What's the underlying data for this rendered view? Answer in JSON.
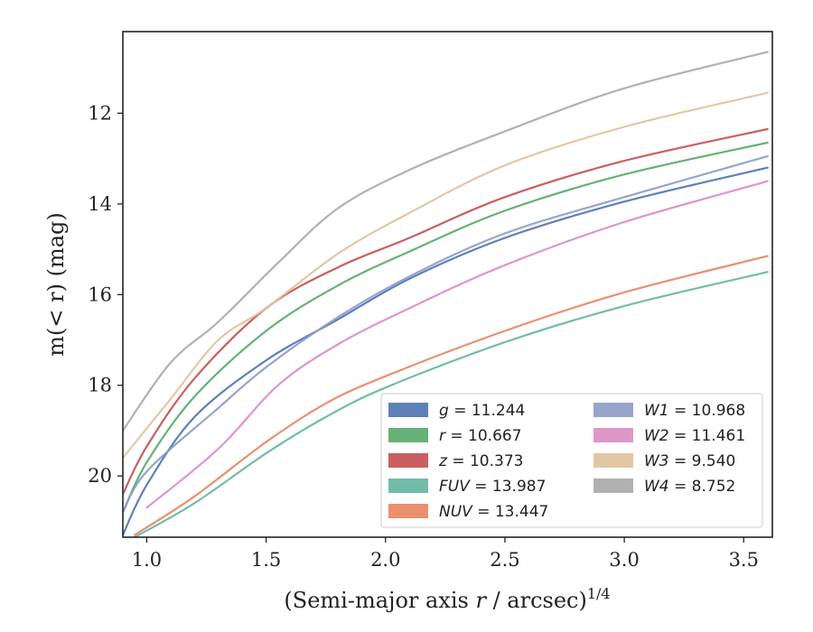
{
  "chart_data": {
    "type": "line",
    "xlabel": "(Semi-major axis r / arcsec)",
    "xlabel_italic": "r",
    "xlabel_sup": "1/4",
    "ylabel": "m(< r) (mag)",
    "xlim": [
      0.9,
      3.62
    ],
    "ylim": [
      21.35,
      10.2
    ],
    "y_inverted": true,
    "xticks": [
      1.0,
      1.5,
      2.0,
      2.5,
      3.0,
      3.5
    ],
    "xtick_labels": [
      "1.0",
      "1.5",
      "2.0",
      "2.5",
      "3.0",
      "3.5"
    ],
    "yticks": [
      12,
      14,
      16,
      18,
      20
    ],
    "ytick_labels": [
      "12",
      "14",
      "16",
      "18",
      "20"
    ],
    "grid": false,
    "legend_placement": "lower-right",
    "series": [
      {
        "name": "g = 11.244",
        "band": "g",
        "mag": "11.244",
        "color": "#4c72b0",
        "x": [
          0.9,
          1.0,
          1.2,
          1.5,
          1.8,
          2.1,
          2.5,
          3.0,
          3.6
        ],
        "y": [
          21.3,
          20.2,
          18.7,
          17.45,
          16.55,
          15.65,
          14.75,
          13.95,
          13.2
        ]
      },
      {
        "name": "r = 10.667",
        "band": "r",
        "mag": "10.667",
        "color": "#55a868",
        "x": [
          0.9,
          1.0,
          1.2,
          1.5,
          1.8,
          2.1,
          2.5,
          3.0,
          3.6
        ],
        "y": [
          20.8,
          19.7,
          18.25,
          16.8,
          15.8,
          15.05,
          14.15,
          13.35,
          12.65
        ]
      },
      {
        "name": "z = 10.373",
        "band": "z",
        "mag": "10.373",
        "color": "#c44e52",
        "x": [
          0.9,
          1.0,
          1.2,
          1.5,
          1.8,
          2.1,
          2.5,
          3.0,
          3.6
        ],
        "y": [
          20.4,
          19.35,
          17.85,
          16.3,
          15.4,
          14.75,
          13.85,
          13.05,
          12.35
        ]
      },
      {
        "name": "FUV = 13.987",
        "band": "FUV",
        "mag": "13.987",
        "color": "#64b5a0",
        "x": [
          0.95,
          1.2,
          1.5,
          1.75,
          2.0,
          2.5,
          3.0,
          3.6
        ],
        "y": [
          21.35,
          20.6,
          19.5,
          18.7,
          18.05,
          17.05,
          16.25,
          15.5
        ]
      },
      {
        "name": "NUV = 13.447",
        "band": "NUV",
        "mag": "13.447",
        "color": "#e8845f",
        "x": [
          0.95,
          1.2,
          1.5,
          1.75,
          2.0,
          2.5,
          3.0,
          3.6
        ],
        "y": [
          21.3,
          20.45,
          19.25,
          18.4,
          17.8,
          16.8,
          15.95,
          15.15
        ]
      },
      {
        "name": "W1 = 10.968",
        "band": "W1",
        "mag": "10.968",
        "color": "#8c9ac7",
        "x": [
          0.9,
          1.0,
          1.3,
          1.5,
          1.8,
          2.1,
          2.5,
          3.0,
          3.6
        ],
        "y": [
          20.8,
          19.9,
          18.5,
          17.6,
          16.5,
          15.6,
          14.65,
          13.85,
          12.95
        ]
      },
      {
        "name": "W2 = 11.461",
        "band": "W2",
        "mag": "11.461",
        "color": "#da8bc3",
        "x": [
          1.0,
          1.3,
          1.55,
          1.8,
          2.1,
          2.5,
          3.0,
          3.6
        ],
        "y": [
          20.7,
          19.4,
          18.0,
          17.1,
          16.3,
          15.35,
          14.4,
          13.5
        ]
      },
      {
        "name": "W3 = 9.540",
        "band": "W3",
        "mag": "9.540",
        "color": "#dfc19c",
        "x": [
          0.9,
          1.1,
          1.3,
          1.5,
          1.8,
          2.1,
          2.5,
          3.0,
          3.6
        ],
        "y": [
          19.6,
          18.3,
          17.0,
          16.3,
          15.1,
          14.2,
          13.15,
          12.3,
          11.55
        ]
      },
      {
        "name": "W4 = 8.752",
        "band": "W4",
        "mag": "8.752",
        "color": "#a8a8a8",
        "x": [
          0.9,
          1.1,
          1.3,
          1.55,
          1.8,
          2.1,
          2.5,
          3.0,
          3.6
        ],
        "y": [
          19.0,
          17.5,
          16.6,
          15.3,
          14.1,
          13.25,
          12.4,
          11.45,
          10.65
        ]
      }
    ]
  }
}
